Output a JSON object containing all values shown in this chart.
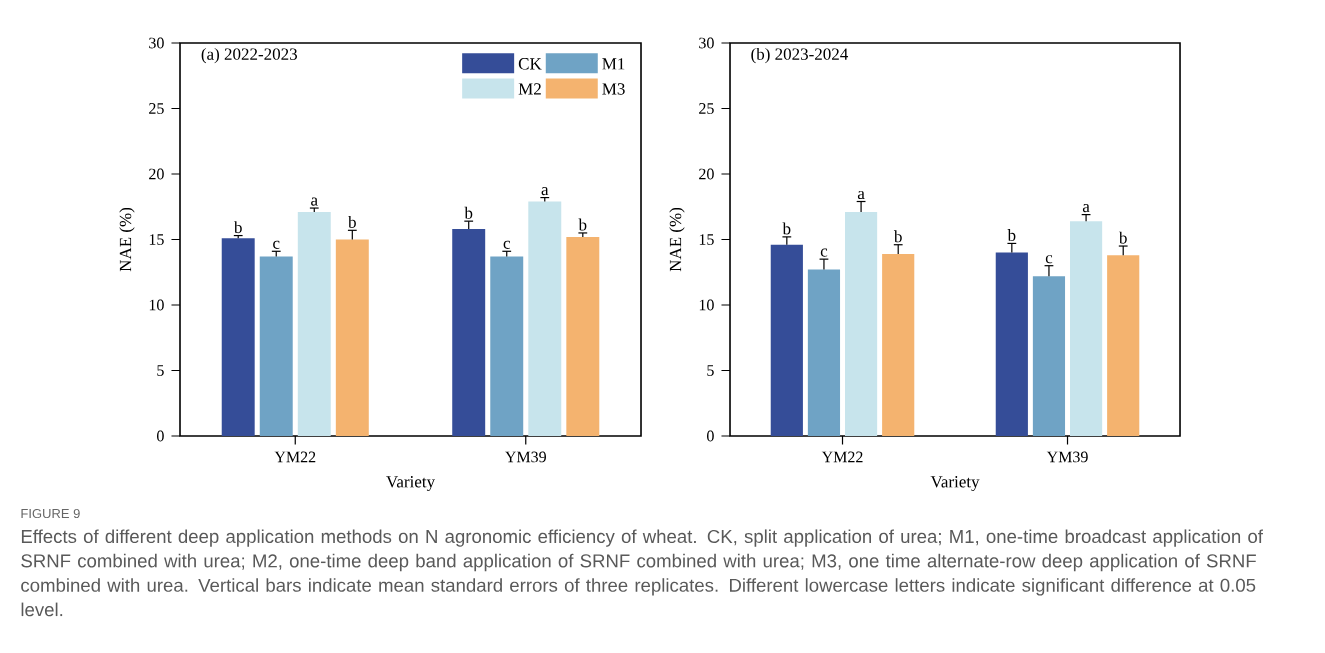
{
  "chart_data": [
    {
      "type": "bar",
      "title": "(a) 2022-2023",
      "categories": [
        "YM22",
        "YM39"
      ],
      "xlabel": "Variety",
      "ylabel": "NAE (%)",
      "ylim": [
        0,
        30
      ],
      "yticks": [
        0,
        5,
        10,
        15,
        20,
        25,
        30
      ],
      "legend": "top right",
      "series": [
        {
          "name": "CK",
          "color": "#354d98",
          "values": [
            15.1,
            15.8
          ],
          "errors": [
            0.2,
            0.6
          ],
          "value_labels": [
            "b",
            "b"
          ]
        },
        {
          "name": "M1",
          "color": "#6fa3c5",
          "values": [
            13.7,
            13.7
          ],
          "errors": [
            0.4,
            0.4
          ],
          "value_labels": [
            "c",
            "c"
          ]
        },
        {
          "name": "M2",
          "color": "#c7e4ec",
          "values": [
            17.1,
            17.9
          ],
          "errors": [
            0.3,
            0.3
          ],
          "value_labels": [
            "a",
            "a"
          ]
        },
        {
          "name": "M3",
          "color": "#f4b36f",
          "values": [
            15.0,
            15.2
          ],
          "errors": [
            0.7,
            0.3
          ],
          "value_labels": [
            "b",
            "b"
          ]
        }
      ],
      "annotations": [
        "FIGURE 9",
        "Effects of different deep application methods on N agronomic efficiency of wheat. CK, split application of urea; M1, one-time broadcast application of SRNF combined with urea; M2, one-time deep band application of SRNF combined with urea; M3, one time alternate-row deep application of SRNF combined with urea. Vertical bars indicate mean standard errors of three replicates. Different lowercase letters indicate significant difference at 0.05 level."
      ]
    },
    {
      "type": "bar",
      "title": "(b) 2023-2024",
      "categories": [
        "YM22",
        "YM39"
      ],
      "xlabel": "Variety",
      "ylabel": "NAE (%)",
      "ylim": [
        0,
        30
      ],
      "yticks": [
        0,
        5,
        10,
        15,
        20,
        25,
        30
      ],
      "series": [
        {
          "color": "#354d98",
          "values": [
            14.6,
            14.0
          ],
          "errors": [
            0.6,
            0.7
          ],
          "value_labels": [
            "b",
            "b"
          ]
        },
        {
          "color": "#6fa3c5",
          "values": [
            12.7,
            12.2
          ],
          "errors": [
            0.8,
            0.8
          ],
          "value_labels": [
            "c",
            "c"
          ]
        },
        {
          "color": "#c7e4ec",
          "values": [
            17.1,
            16.4
          ],
          "errors": [
            0.8,
            0.5
          ],
          "value_labels": [
            "a",
            "a"
          ]
        },
        {
          "color": "#f4b36f",
          "values": [
            13.9,
            13.8
          ],
          "errors": [
            0.7,
            0.7
          ],
          "value_labels": [
            "b",
            "b"
          ]
        }
      ]
    }
  ]
}
